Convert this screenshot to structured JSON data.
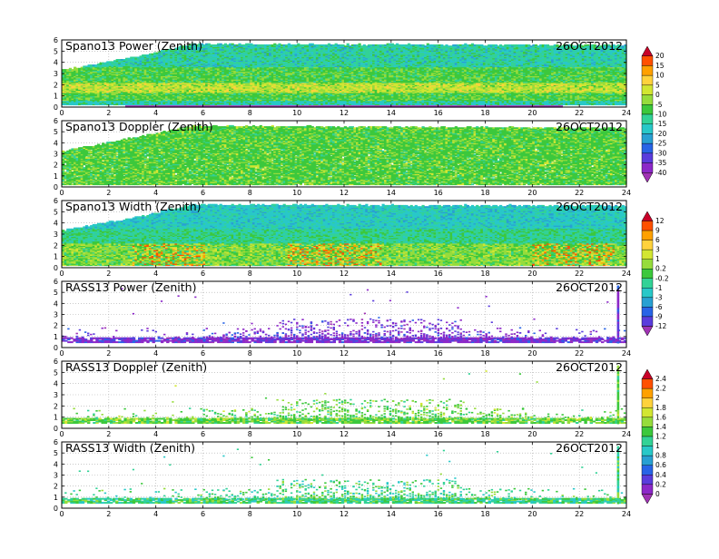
{
  "figure": {
    "panels": [
      {
        "id": "spano13-power",
        "title": "Spano13 Power (Zenith)",
        "date": "26OCT2012",
        "colorbar": "cb-power",
        "kind": "spano",
        "field": "power"
      },
      {
        "id": "spano13-doppler",
        "title": "Spano13 Doppler (Zenith)",
        "date": "26OCT2012",
        "colorbar": "cb-power",
        "kind": "spano",
        "field": "doppler"
      },
      {
        "id": "spano13-width",
        "title": "Spano13 Width (Zenith)",
        "date": "26OCT2012",
        "colorbar": "cb-width",
        "kind": "spano",
        "field": "width"
      },
      {
        "id": "rass13-power",
        "title": "RASS13 Power (Zenith)",
        "date": "26OCT2012",
        "colorbar": "cb-width",
        "kind": "rass",
        "field": "power"
      },
      {
        "id": "rass13-doppler",
        "title": "RASS13 Doppler (Zenith)",
        "date": "26OCT2012",
        "colorbar": "cb-rass",
        "kind": "rass",
        "field": "doppler"
      },
      {
        "id": "rass13-width",
        "title": "RASS13 Width (Zenith)",
        "date": "26OCT2012",
        "colorbar": "cb-rass",
        "kind": "rass",
        "field": "width"
      }
    ],
    "colorbars": [
      {
        "id": "cb-power",
        "labels": [
          "20",
          "15",
          "10",
          "5",
          "0",
          "-5",
          "-10",
          "-15",
          "-20",
          "-25",
          "-30",
          "-35",
          "-40"
        ],
        "colors": [
          "#c80028",
          "#ff5000",
          "#ffa000",
          "#ffd23c",
          "#d2e632",
          "#96dc3c",
          "#3cc83c",
          "#32d296",
          "#28c8c8",
          "#28a0d2",
          "#2864e6",
          "#5a3cdc",
          "#8c28c8",
          "#a032b4"
        ]
      },
      {
        "id": "cb-width",
        "labels": [
          "12",
          "9",
          "6",
          "3",
          "1",
          "0.2",
          "-0.2",
          "-1",
          "-3",
          "-6",
          "-9",
          "-12"
        ],
        "colors": [
          "#c80028",
          "#ff5000",
          "#ffa000",
          "#ffd23c",
          "#d2e632",
          "#96dc3c",
          "#3cc83c",
          "#32d296",
          "#28c8c8",
          "#28a0d2",
          "#2864e6",
          "#5a3cdc",
          "#a032b4"
        ]
      },
      {
        "id": "cb-rass",
        "labels": [
          "2.4",
          "2.2",
          "2",
          "1.8",
          "1.6",
          "1.4",
          "1.2",
          "1",
          "0.8",
          "0.6",
          "0.4",
          "0.2",
          "0"
        ],
        "colors": [
          "#c80028",
          "#ff5000",
          "#ffa000",
          "#ffd23c",
          "#d2e632",
          "#96dc3c",
          "#3cc83c",
          "#32d296",
          "#28c8c8",
          "#28a0d2",
          "#2864e6",
          "#5a3cdc",
          "#8c28c8",
          "#a032b4"
        ]
      }
    ]
  },
  "chart_data": [
    {
      "type": "heatmap",
      "title": "Spano13 Power (Zenith)",
      "annotation": "26OCT2012",
      "xlim": [
        0,
        24
      ],
      "ylim": [
        0,
        6
      ],
      "xticks": [
        0,
        2,
        4,
        6,
        8,
        10,
        12,
        14,
        16,
        18,
        20,
        22,
        24
      ],
      "yticks": [
        0,
        1,
        2,
        3,
        4,
        5,
        6
      ],
      "coverage_top": [
        [
          0,
          3.3
        ],
        [
          2.7,
          4.3
        ],
        [
          5.5,
          5.6
        ],
        [
          24,
          5.5
        ]
      ],
      "color_bands": [
        {
          "height": [
            0,
            0.6
          ],
          "value": -20
        },
        {
          "height": [
            1.3,
            2.2
          ],
          "value": 0
        },
        {
          "height": [
            2.2,
            3.5
          ],
          "value": -10
        },
        {
          "height": [
            4.2,
            5.5
          ],
          "value": -25
        }
      ]
    },
    {
      "type": "heatmap",
      "title": "Spano13 Doppler (Zenith)",
      "annotation": "26OCT2012",
      "xlim": [
        0,
        24
      ],
      "ylim": [
        0,
        6
      ],
      "xticks": [
        0,
        2,
        4,
        6,
        8,
        10,
        12,
        14,
        16,
        18,
        20,
        22,
        24
      ],
      "yticks": [
        0,
        1,
        2,
        3,
        4,
        5,
        6
      ],
      "coverage_top": [
        [
          0,
          3.2
        ],
        [
          2.7,
          4.3
        ],
        [
          5.5,
          5.5
        ],
        [
          24,
          5.3
        ]
      ],
      "color_bands": [
        {
          "height": [
            0,
            5.5
          ],
          "value": -10
        }
      ]
    },
    {
      "type": "heatmap",
      "title": "Spano13 Width (Zenith)",
      "annotation": "26OCT2012",
      "xlim": [
        0,
        24
      ],
      "ylim": [
        0,
        6
      ],
      "xticks": [
        0,
        2,
        4,
        6,
        8,
        10,
        12,
        14,
        16,
        18,
        20,
        22,
        24
      ],
      "yticks": [
        0,
        1,
        2,
        3,
        4,
        5,
        6
      ],
      "coverage_top": [
        [
          0,
          3.3
        ],
        [
          2.7,
          4.3
        ],
        [
          5.5,
          5.6
        ],
        [
          24,
          5.5
        ]
      ],
      "color_bands": [
        {
          "height": [
            0.3,
            2.2
          ],
          "value": 3
        },
        {
          "height": [
            2.2,
            3.5
          ],
          "value": 0.2
        },
        {
          "height": [
            3.5,
            5.6
          ],
          "value": -1
        }
      ]
    },
    {
      "type": "heatmap",
      "title": "RASS13 Power (Zenith)",
      "annotation": "26OCT2012",
      "xlim": [
        0,
        24
      ],
      "ylim": [
        0,
        6
      ],
      "xticks": [
        0,
        2,
        4,
        6,
        8,
        10,
        12,
        14,
        16,
        18,
        20,
        22,
        24
      ],
      "yticks": [
        0,
        1,
        2,
        3,
        4,
        5,
        6
      ],
      "color_bands": [
        {
          "height": [
            0.4,
            0.9
          ],
          "value": -12
        }
      ]
    },
    {
      "type": "heatmap",
      "title": "RASS13 Doppler (Zenith)",
      "annotation": "26OCT2012",
      "xlim": [
        0,
        24
      ],
      "ylim": [
        0,
        6
      ],
      "xticks": [
        0,
        2,
        4,
        6,
        8,
        10,
        12,
        14,
        16,
        18,
        20,
        22,
        24
      ],
      "yticks": [
        0,
        1,
        2,
        3,
        4,
        5,
        6
      ],
      "color_bands": [
        {
          "height": [
            0.4,
            0.9
          ],
          "value": 1.2
        }
      ]
    },
    {
      "type": "heatmap",
      "title": "RASS13 Width (Zenith)",
      "annotation": "26OCT2012",
      "xlim": [
        0,
        24
      ],
      "ylim": [
        0,
        6
      ],
      "xticks": [
        0,
        2,
        4,
        6,
        8,
        10,
        12,
        14,
        16,
        18,
        20,
        22,
        24
      ],
      "yticks": [
        0,
        1,
        2,
        3,
        4,
        5,
        6
      ],
      "color_bands": [
        {
          "height": [
            0.4,
            0.9
          ],
          "value": 0.8
        }
      ]
    }
  ]
}
